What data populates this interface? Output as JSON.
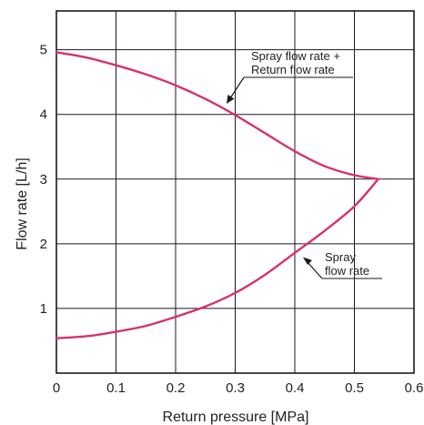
{
  "chart_data": {
    "type": "line",
    "title": "",
    "xlabel": "Return pressure [MPa]",
    "ylabel": "Flow rate [L/h]",
    "xlim": [
      0,
      0.6
    ],
    "ylim": [
      0,
      5.6
    ],
    "x_ticks": [
      0,
      0.1,
      0.2,
      0.3,
      0.4,
      0.5,
      0.6
    ],
    "x_tick_labels": [
      "0",
      "0.1",
      "0.2",
      "0.3",
      "0.4",
      "0.5",
      "0.6"
    ],
    "y_ticks": [
      1,
      2,
      3,
      4,
      5
    ],
    "y_tick_labels": [
      "1",
      "2",
      "3",
      "4",
      "5"
    ],
    "grid": true,
    "line_color": "#d6336c",
    "series": [
      {
        "name": "Spray flow rate + Return flow rate",
        "x": [
          0,
          0.05,
          0.1,
          0.15,
          0.2,
          0.25,
          0.3,
          0.35,
          0.4,
          0.45,
          0.5,
          0.54
        ],
        "y": [
          4.96,
          4.88,
          4.76,
          4.62,
          4.45,
          4.24,
          3.99,
          3.71,
          3.43,
          3.2,
          3.06,
          3.0
        ]
      },
      {
        "name": "Spray flow rate",
        "x": [
          0,
          0.05,
          0.1,
          0.15,
          0.2,
          0.25,
          0.3,
          0.35,
          0.4,
          0.45,
          0.5,
          0.54
        ],
        "y": [
          0.54,
          0.57,
          0.64,
          0.73,
          0.87,
          1.03,
          1.24,
          1.52,
          1.86,
          2.2,
          2.58,
          3.0
        ]
      }
    ],
    "annotations": [
      {
        "lines": [
          "Spray flow rate +",
          "Return flow rate"
        ],
        "series": "Spray flow rate + Return flow rate"
      },
      {
        "lines": [
          "Spray",
          "flow rate"
        ],
        "series": "Spray flow rate"
      }
    ]
  }
}
